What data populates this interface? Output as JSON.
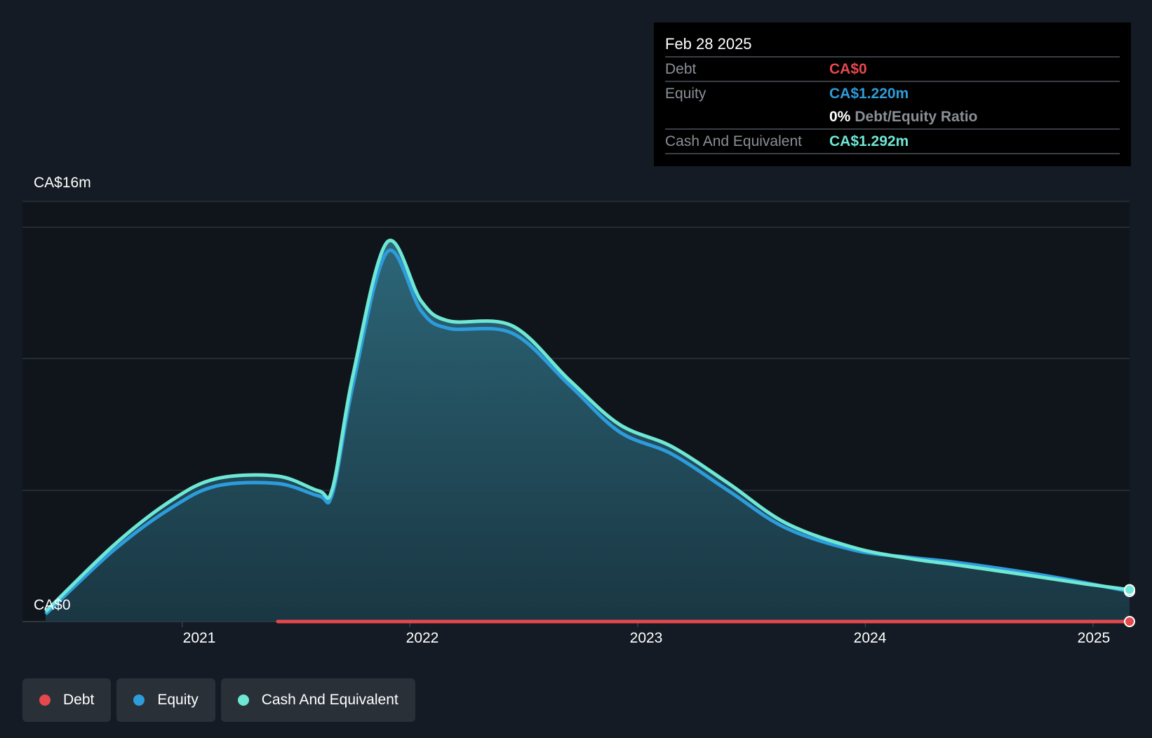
{
  "tooltip": {
    "date": "Feb 28 2025",
    "debt_label": "Debt",
    "debt_value": "CA$0",
    "equity_label": "Equity",
    "equity_value": "CA$1.220m",
    "ratio_pct": "0%",
    "ratio_label": "Debt/Equity Ratio",
    "cash_label": "Cash And Equivalent",
    "cash_value": "CA$1.292m"
  },
  "colors": {
    "debt": "#e5484d",
    "equity": "#2d9cdb",
    "cash": "#6ee7d4",
    "background": "#151b24",
    "plot_background": "#10151c"
  },
  "legend": [
    {
      "label": "Debt",
      "color": "#e5484d"
    },
    {
      "label": "Equity",
      "color": "#2d9cdb"
    },
    {
      "label": "Cash And Equivalent",
      "color": "#6ee7d4"
    }
  ],
  "chart_data": {
    "type": "area",
    "y_axis_labels": {
      "top": "CA$16m",
      "bottom": "CA$0"
    },
    "ylim": [
      0,
      16
    ],
    "xlim": [
      2020.2,
      2025.16
    ],
    "x_ticks": [
      "2021",
      "2022",
      "2023",
      "2024",
      "2025"
    ],
    "grid": true,
    "legend_position": "bottom-left",
    "series": [
      {
        "name": "Debt",
        "color": "#e5484d",
        "x": [
          2021.42,
          2025.16
        ],
        "y": [
          0,
          0
        ]
      },
      {
        "name": "Equity",
        "color": "#2d9cdb",
        "x": [
          2020.4,
          2020.7,
          2020.95,
          2021.15,
          2021.42,
          2021.6,
          2021.66,
          2021.75,
          2021.9,
          2022.05,
          2022.17,
          2022.45,
          2022.7,
          2022.92,
          2023.15,
          2023.4,
          2023.65,
          2023.95,
          2024.2,
          2024.4,
          2024.7,
          2024.95,
          2025.16
        ],
        "y": [
          0.3,
          2.9,
          4.6,
          5.5,
          5.6,
          5.1,
          5.2,
          9.6,
          15.0,
          12.6,
          11.9,
          11.7,
          9.6,
          7.7,
          6.8,
          5.3,
          3.8,
          2.9,
          2.6,
          2.4,
          2.0,
          1.6,
          1.22
        ]
      },
      {
        "name": "Cash And Equivalent",
        "color": "#6ee7d4",
        "x": [
          2020.4,
          2020.7,
          2020.95,
          2021.15,
          2021.42,
          2021.6,
          2021.66,
          2021.75,
          2021.9,
          2022.05,
          2022.17,
          2022.45,
          2022.7,
          2022.92,
          2023.15,
          2023.4,
          2023.65,
          2023.95,
          2024.2,
          2024.4,
          2024.7,
          2024.95,
          2025.16
        ],
        "y": [
          0.4,
          3.1,
          4.9,
          5.8,
          5.9,
          5.3,
          5.4,
          10.0,
          15.4,
          13.0,
          12.2,
          12.0,
          9.8,
          8.0,
          7.1,
          5.6,
          4.0,
          3.0,
          2.55,
          2.3,
          1.9,
          1.55,
          1.292
        ]
      }
    ]
  }
}
